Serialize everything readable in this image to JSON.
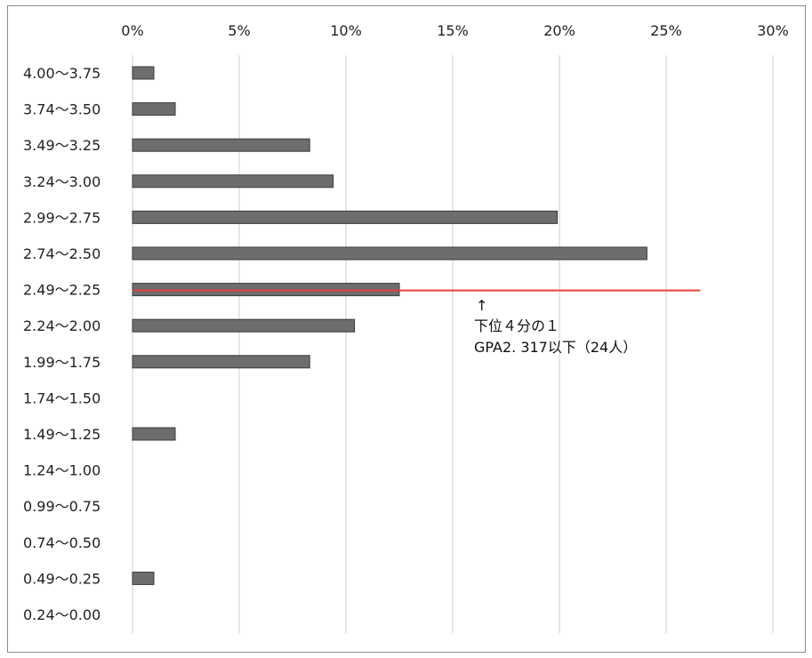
{
  "chart_data": {
    "type": "bar",
    "orientation": "horizontal",
    "categories": [
      "4.00～3.75",
      "3.74～3.50",
      "3.49～3.25",
      "3.24～3.00",
      "2.99～2.75",
      "2.74～2.50",
      "2.49～2.25",
      "2.24～2.00",
      "1.99～1.75",
      "1.74～1.50",
      "1.49～1.25",
      "1.24～1.00",
      "0.99～0.75",
      "0.74～0.50",
      "0.49～0.25",
      "0.24～0.00"
    ],
    "values": [
      1.0,
      2.0,
      8.3,
      9.4,
      19.9,
      24.1,
      12.5,
      10.4,
      8.3,
      0,
      2.0,
      0,
      0,
      0,
      1.0,
      0
    ],
    "x_ticks": [
      "0%",
      "5%",
      "10%",
      "15%",
      "20%",
      "25%",
      "30%"
    ],
    "xlim": [
      0,
      30
    ],
    "unit": "%",
    "grid": true,
    "x_axis_position": "top",
    "colors": {
      "bar": "#6d6d6d",
      "bar_edge": "#3a3a3a",
      "grid": "#cfcfcf",
      "reference_line": "#e8403a"
    },
    "reference_line": {
      "category": "2.49～2.25",
      "from": 0,
      "to": 26.6
    },
    "annotation": {
      "arrow": "↑",
      "line1": "下位４分の１",
      "line2": "GPA2. 317以下（24人）"
    }
  }
}
